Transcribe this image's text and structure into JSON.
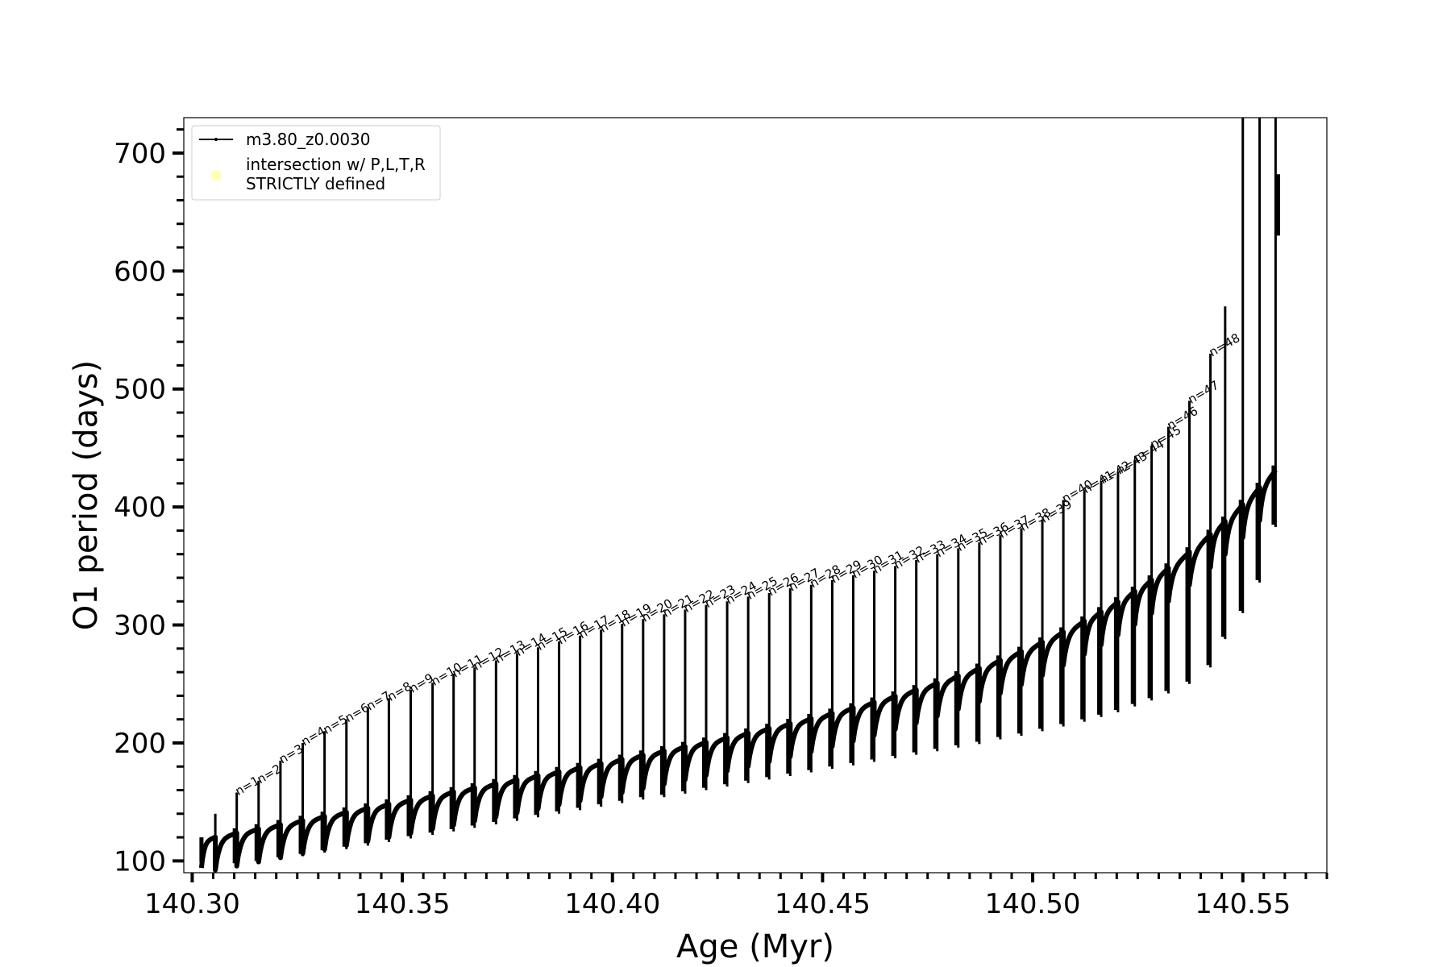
{
  "chart_data": {
    "type": "line",
    "title": "",
    "xlabel": "Age (Myr)",
    "ylabel": "O1 period (days)",
    "xlim": [
      140.298,
      140.57
    ],
    "ylim": [
      90,
      730
    ],
    "xticks": [
      140.3,
      140.35,
      140.4,
      140.45,
      140.5,
      140.55
    ],
    "xtick_labels": [
      "140.30",
      "140.35",
      "140.40",
      "140.45",
      "140.50",
      "140.55"
    ],
    "x_minor_step": 0.005,
    "yticks": [
      100,
      200,
      300,
      400,
      500,
      600,
      700
    ],
    "ytick_labels": [
      "100",
      "200",
      "300",
      "400",
      "500",
      "600",
      "700"
    ],
    "y_minor_step": 20,
    "grid": false,
    "legend": {
      "placement": "top-left",
      "entries": [
        {
          "label": "m3.80_z0.0030",
          "marker": "line-dot",
          "color": "#000000"
        },
        {
          "label_lines": [
            "intersection w/ P,L,T,R",
            "STRICTLY defined"
          ],
          "marker": "circle",
          "color": "#ffffc0"
        }
      ]
    },
    "series": [
      {
        "name": "m3.80_z0.0030",
        "color": "#000000",
        "curve_start": [
          140.3022,
          118
        ],
        "curve_end": [
          140.558,
          432
        ],
        "pulse_spikes": [
          {
            "n": "n=1",
            "age": 140.3106,
            "base": 108,
            "peak": 158
          },
          {
            "n": "n=2",
            "age": 140.3158,
            "base": 110,
            "peak": 168
          },
          {
            "n": "n=3",
            "age": 140.321,
            "base": 113,
            "peak": 185
          },
          {
            "n": "n=4",
            "age": 140.3263,
            "base": 116,
            "peak": 200
          },
          {
            "n": "n=5",
            "age": 140.3315,
            "base": 119,
            "peak": 210
          },
          {
            "n": "n=6",
            "age": 140.3367,
            "base": 122,
            "peak": 220
          },
          {
            "n": "n=7",
            "age": 140.3418,
            "base": 125,
            "peak": 230
          },
          {
            "n": "n=8",
            "age": 140.3468,
            "base": 128,
            "peak": 238
          },
          {
            "n": "n=9",
            "age": 140.352,
            "base": 131,
            "peak": 245
          },
          {
            "n": "n=10",
            "age": 140.3572,
            "base": 134,
            "peak": 251
          },
          {
            "n": "n=11",
            "age": 140.3622,
            "base": 137,
            "peak": 258
          },
          {
            "n": "n=12",
            "age": 140.3672,
            "base": 140,
            "peak": 264
          },
          {
            "n": "n=13",
            "age": 140.3723,
            "base": 143,
            "peak": 270
          },
          {
            "n": "n=14",
            "age": 140.3773,
            "base": 146,
            "peak": 276
          },
          {
            "n": "n=15",
            "age": 140.3823,
            "base": 149,
            "peak": 281
          },
          {
            "n": "n=16",
            "age": 140.3873,
            "base": 152,
            "peak": 286
          },
          {
            "n": "n=17",
            "age": 140.3923,
            "base": 155,
            "peak": 291
          },
          {
            "n": "n=18",
            "age": 140.3973,
            "base": 158,
            "peak": 296
          },
          {
            "n": "n=19",
            "age": 140.4023,
            "base": 161,
            "peak": 301
          },
          {
            "n": "n=20",
            "age": 140.4073,
            "base": 164,
            "peak": 305
          },
          {
            "n": "n=21",
            "age": 140.4123,
            "base": 166,
            "peak": 309
          },
          {
            "n": "n=22",
            "age": 140.4173,
            "base": 169,
            "peak": 313
          },
          {
            "n": "n=23",
            "age": 140.4223,
            "base": 172,
            "peak": 317
          },
          {
            "n": "n=24",
            "age": 140.4273,
            "base": 175,
            "peak": 320
          },
          {
            "n": "n=25",
            "age": 140.4323,
            "base": 178,
            "peak": 324
          },
          {
            "n": "n=26",
            "age": 140.4373,
            "base": 181,
            "peak": 327
          },
          {
            "n": "n=27",
            "age": 140.4423,
            "base": 184,
            "peak": 331
          },
          {
            "n": "n=28",
            "age": 140.4473,
            "base": 187,
            "peak": 334
          },
          {
            "n": "n=29",
            "age": 140.4523,
            "base": 190,
            "peak": 338
          },
          {
            "n": "n=30",
            "age": 140.4573,
            "base": 193,
            "peak": 342
          },
          {
            "n": "n=31",
            "age": 140.4623,
            "base": 196,
            "peak": 346
          },
          {
            "n": "n=32",
            "age": 140.4673,
            "base": 199,
            "peak": 350
          },
          {
            "n": "n=33",
            "age": 140.4723,
            "base": 202,
            "peak": 355
          },
          {
            "n": "n=34",
            "age": 140.4773,
            "base": 205,
            "peak": 360
          },
          {
            "n": "n=35",
            "age": 140.4823,
            "base": 208,
            "peak": 365
          },
          {
            "n": "n=36",
            "age": 140.4873,
            "base": 211,
            "peak": 370
          },
          {
            "n": "n=37",
            "age": 140.4923,
            "base": 215,
            "peak": 376
          },
          {
            "n": "n=38",
            "age": 140.4973,
            "base": 218,
            "peak": 382
          },
          {
            "n": "n=39",
            "age": 140.5023,
            "base": 222,
            "peak": 389
          },
          {
            "n": "n=40",
            "age": 140.5073,
            "base": 226,
            "peak": 406
          },
          {
            "n": "n=41",
            "age": 140.5123,
            "base": 230,
            "peak": 414
          },
          {
            "n": "n=42",
            "age": 140.5163,
            "base": 234,
            "peak": 422
          },
          {
            "n": "n=43",
            "age": 140.5203,
            "base": 238,
            "peak": 430
          },
          {
            "n": "n=44",
            "age": 140.5243,
            "base": 243,
            "peak": 440
          },
          {
            "n": "n=45",
            "age": 140.5283,
            "base": 248,
            "peak": 452
          },
          {
            "n": "n=46",
            "age": 140.5323,
            "base": 254,
            "peak": 468
          },
          {
            "n": "n=47",
            "age": 140.5373,
            "base": 262,
            "peak": 490
          },
          {
            "n": "n=48",
            "age": 140.5423,
            "base": 276,
            "peak": 530
          }
        ],
        "extra_spikes": [
          {
            "age": 140.5458,
            "base": 300,
            "peak": 570
          },
          {
            "age": 140.55,
            "base": 322,
            "peak": 730
          },
          {
            "age": 140.554,
            "base": 348,
            "peak": 730
          },
          {
            "age": 140.5578,
            "base": 395,
            "peak": 730
          }
        ]
      }
    ]
  }
}
